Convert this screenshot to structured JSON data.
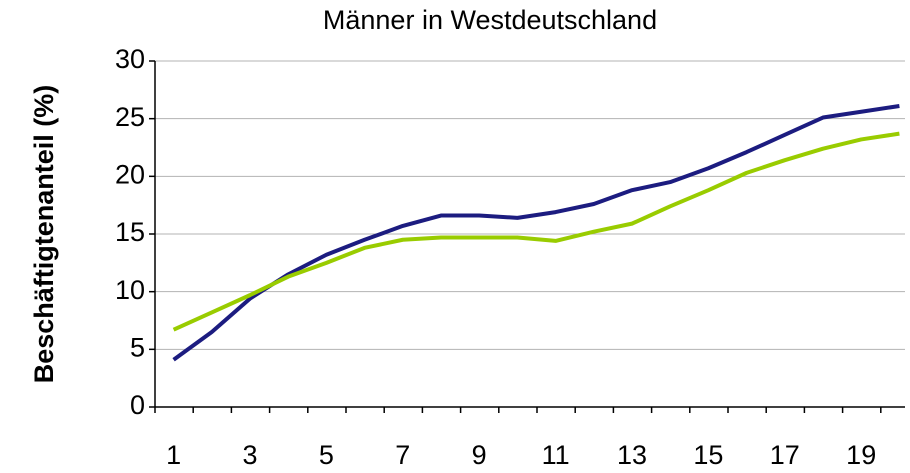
{
  "chart_data": {
    "type": "line",
    "title": "Männer in Westdeutschland",
    "ylabel": "Beschäftigtenanteil (%)",
    "categories": [
      1,
      null,
      3,
      null,
      5,
      null,
      7,
      null,
      9,
      null,
      11,
      null,
      13,
      null,
      15,
      null,
      17,
      null,
      19,
      null
    ],
    "series": [
      {
        "color": "#1c1c80",
        "values": [
          4.1,
          6.5,
          9.4,
          11.5,
          13.2,
          14.5,
          15.7,
          16.6,
          16.6,
          16.4,
          16.9,
          17.6,
          18.8,
          19.5,
          20.7,
          22.1,
          23.6,
          25.1,
          25.6,
          26.1
        ]
      },
      {
        "color": "#99cc00",
        "values": [
          6.7,
          8.2,
          9.7,
          11.3,
          12.5,
          13.8,
          14.5,
          14.7,
          14.7,
          14.7,
          14.4,
          15.2,
          15.9,
          17.4,
          18.8,
          20.3,
          21.4,
          22.4,
          23.2,
          23.7
        ]
      }
    ],
    "ylim": [
      0,
      30
    ],
    "yticks": [
      0,
      5,
      10,
      15,
      20,
      25,
      30
    ],
    "grid": true
  }
}
